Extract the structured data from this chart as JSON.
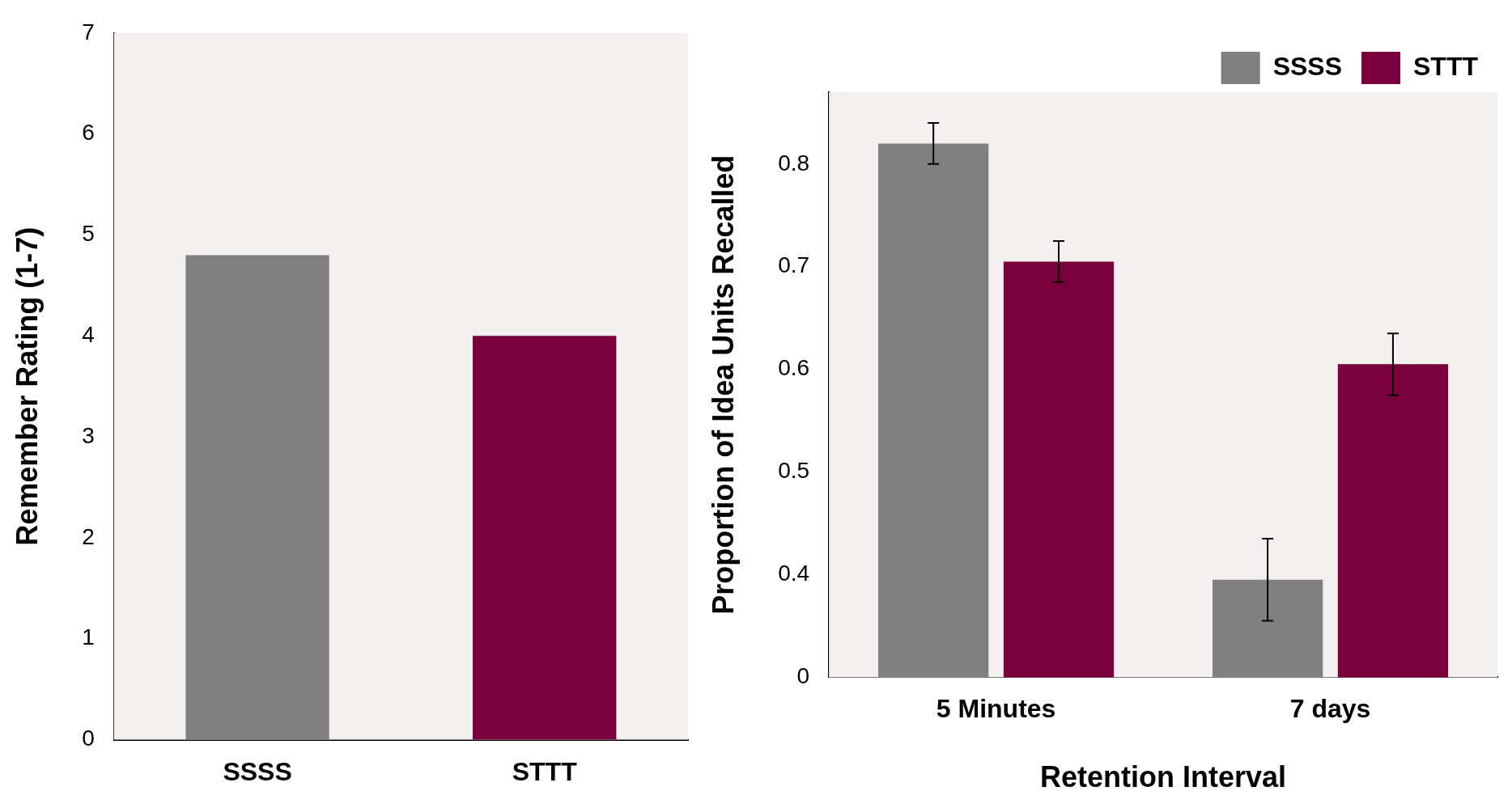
{
  "chart_data": [
    {
      "type": "bar",
      "ylabel": "Remember Rating (1-7)",
      "categories": [
        "SSSS",
        "STTT"
      ],
      "values": [
        4.8,
        4.0
      ],
      "colors": [
        "#808080",
        "#7a003c"
      ],
      "ylim": [
        0,
        7
      ],
      "yticks": [
        0,
        1,
        2,
        3,
        4,
        5,
        6,
        7
      ],
      "grid": false,
      "legend": false
    },
    {
      "type": "bar",
      "ylabel": "Proportion of Idea Units Recalled",
      "xlabel": "Retention Interval",
      "categories": [
        "5 Minutes",
        "7 days"
      ],
      "ylim": [
        0.3,
        0.87
      ],
      "yticks": [
        {
          "value": 0.3,
          "label": "0"
        },
        0.4,
        0.5,
        0.6,
        0.7,
        0.8
      ],
      "grid": false,
      "legend": "top right",
      "series": [
        {
          "name": "SSSS",
          "color": "#808080",
          "values": [
            0.82,
            0.395
          ],
          "errors": [
            0.02,
            0.04
          ]
        },
        {
          "name": "STTT",
          "color": "#7a003c",
          "values": [
            0.705,
            0.605
          ],
          "errors": [
            0.02,
            0.03
          ]
        }
      ]
    }
  ]
}
